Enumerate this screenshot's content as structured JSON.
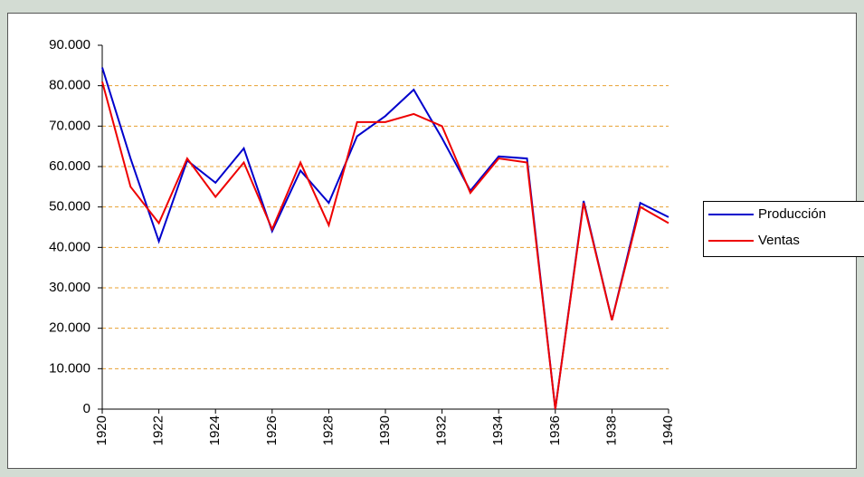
{
  "chart_data": {
    "type": "line",
    "x": [
      1920,
      1921,
      1922,
      1923,
      1924,
      1925,
      1926,
      1927,
      1928,
      1929,
      1930,
      1931,
      1932,
      1933,
      1934,
      1935,
      1936,
      1937,
      1938,
      1939,
      1940
    ],
    "series": [
      {
        "name": "Producción",
        "color": "#0000cc",
        "values": [
          84500,
          62000,
          41500,
          61500,
          56000,
          64500,
          44000,
          59000,
          51000,
          67500,
          72500,
          79000,
          67000,
          54000,
          62500,
          62000,
          0,
          51500,
          22000,
          51000,
          47500
        ]
      },
      {
        "name": "Ventas",
        "color": "#ee0000",
        "values": [
          81000,
          55000,
          46000,
          62000,
          52500,
          61000,
          44500,
          61000,
          45500,
          71000,
          71000,
          73000,
          70000,
          53500,
          62000,
          61000,
          0,
          51000,
          22000,
          50000,
          46000
        ]
      }
    ],
    "xlim": [
      1920,
      1940
    ],
    "xticks": [
      1920,
      1922,
      1924,
      1926,
      1928,
      1930,
      1932,
      1934,
      1936,
      1938,
      1940
    ],
    "ylim": [
      0,
      90000
    ],
    "yticks": [
      0,
      {
        "value": 10000,
        "label": "10.000"
      },
      {
        "value": 20000,
        "label": "20.000"
      },
      {
        "value": 30000,
        "label": "30.000"
      },
      {
        "value": 40000,
        "label": "40.000"
      },
      {
        "value": 50000,
        "label": "50.000"
      },
      {
        "value": 60000,
        "label": "60.000"
      },
      {
        "value": 70000,
        "label": "70.000"
      },
      {
        "value": 80000,
        "label": "80.000"
      },
      {
        "value": 90000,
        "label": "90.000"
      }
    ],
    "grid": true,
    "legend": "right"
  }
}
